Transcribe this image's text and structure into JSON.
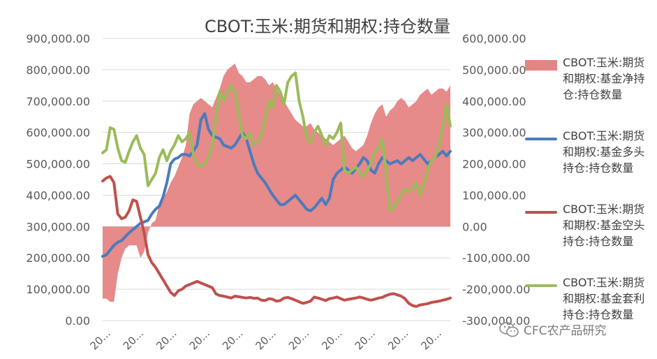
{
  "chart_data": {
    "type": "line",
    "title": "CBOT:玉米:期货和期权:持仓数量",
    "y_left": {
      "min": 0,
      "max": 900000,
      "tick_labels": [
        "0.00",
        "100,000.00",
        "200,000.00",
        "300,000.00",
        "400,000.00",
        "500,000.00",
        "600,000.00",
        "700,000.00",
        "800,000.00",
        "900,000.00"
      ]
    },
    "y_right": {
      "min": -300000,
      "max": 600000,
      "tick_labels": [
        "-300,000.00",
        "-200,000.00",
        "-100,000.00",
        "0.00",
        "100,000.00",
        "200,000.00",
        "300,000.00",
        "400,000.00",
        "500,000.00",
        "600,000.00"
      ]
    },
    "x_tick_labels": [
      "20...",
      "20...",
      "20...",
      "20...",
      "20...",
      "20...",
      "20...",
      "20...",
      "20...",
      "20...",
      "20..."
    ],
    "grid": "horizontal",
    "legend_position": "right",
    "series": [
      {
        "name": "CBOT:玉米:期货和期权:基金净持仓:持仓数量",
        "kind": "area",
        "axis": "right",
        "color": "#e58484",
        "values": [
          -230000,
          -230000,
          -240000,
          -240000,
          -150000,
          -100000,
          -70000,
          -60000,
          -60000,
          -60000,
          -100000,
          -80000,
          -20000,
          10000,
          20000,
          70000,
          90000,
          110000,
          140000,
          160000,
          190000,
          220000,
          260000,
          360000,
          390000,
          400000,
          410000,
          400000,
          390000,
          380000,
          410000,
          440000,
          480000,
          500000,
          510000,
          520000,
          490000,
          480000,
          460000,
          460000,
          470000,
          480000,
          480000,
          470000,
          450000,
          460000,
          440000,
          420000,
          400000,
          380000,
          360000,
          340000,
          330000,
          320000,
          320000,
          330000,
          310000,
          300000,
          290000,
          280000,
          270000,
          260000,
          270000,
          280000,
          290000,
          270000,
          250000,
          240000,
          250000,
          260000,
          290000,
          330000,
          360000,
          380000,
          390000,
          350000,
          370000,
          380000,
          400000,
          410000,
          400000,
          380000,
          390000,
          400000,
          420000,
          430000,
          440000,
          420000,
          430000,
          440000,
          440000,
          430000,
          450000
        ]
      },
      {
        "name": "CBOT:玉米:期货和期权:基金多头持仓:持仓数量",
        "kind": "line",
        "axis": "left",
        "color": "#4a7bbd",
        "values": [
          205000,
          210000,
          225000,
          240000,
          250000,
          255000,
          268000,
          280000,
          290000,
          300000,
          310000,
          315000,
          320000,
          340000,
          355000,
          365000,
          395000,
          440000,
          500000,
          515000,
          520000,
          530000,
          530000,
          525000,
          540000,
          560000,
          640000,
          660000,
          610000,
          590000,
          585000,
          580000,
          560000,
          555000,
          550000,
          560000,
          580000,
          600000,
          580000,
          540000,
          500000,
          470000,
          455000,
          440000,
          420000,
          400000,
          385000,
          370000,
          370000,
          380000,
          390000,
          400000,
          385000,
          370000,
          355000,
          350000,
          360000,
          375000,
          390000,
          370000,
          390000,
          450000,
          470000,
          480000,
          490000,
          480000,
          470000,
          485000,
          500000,
          520000,
          510000,
          480000,
          470000,
          500000,
          520000,
          510000,
          500000,
          505000,
          510000,
          500000,
          510000,
          520000,
          510000,
          520000,
          530000,
          515000,
          500000,
          510000,
          520000,
          530000,
          540000,
          525000,
          540000
        ]
      },
      {
        "name": "CBOT:玉米:期货和期权:基金空头持仓:持仓数量",
        "kind": "line",
        "axis": "left",
        "color": "#c0504d",
        "values": [
          445000,
          455000,
          460000,
          440000,
          340000,
          325000,
          330000,
          350000,
          385000,
          380000,
          330000,
          280000,
          210000,
          185000,
          170000,
          150000,
          130000,
          110000,
          90000,
          80000,
          95000,
          100000,
          110000,
          115000,
          120000,
          125000,
          120000,
          115000,
          110000,
          105000,
          85000,
          80000,
          78000,
          75000,
          72000,
          78000,
          76000,
          74000,
          72000,
          74000,
          71000,
          72000,
          65000,
          64000,
          70000,
          68000,
          62000,
          64000,
          72000,
          74000,
          70000,
          65000,
          60000,
          55000,
          58000,
          62000,
          75000,
          72000,
          68000,
          64000,
          70000,
          72000,
          75000,
          70000,
          65000,
          68000,
          70000,
          72000,
          75000,
          72000,
          68000,
          65000,
          68000,
          72000,
          74000,
          80000,
          84000,
          86000,
          82000,
          78000,
          70000,
          55000,
          48000,
          45000,
          50000,
          52000,
          54000,
          58000,
          60000,
          62000,
          65000,
          68000,
          72000
        ]
      },
      {
        "name": "CBOT:玉米:期货和期权:基金套利持仓:持仓数量",
        "kind": "line",
        "axis": "left",
        "color": "#9bbb59",
        "values": [
          535000,
          545000,
          615000,
          610000,
          550000,
          510000,
          505000,
          540000,
          570000,
          590000,
          550000,
          530000,
          430000,
          450000,
          470000,
          520000,
          545000,
          510000,
          540000,
          560000,
          590000,
          570000,
          580000,
          600000,
          530000,
          500000,
          490000,
          500000,
          520000,
          560000,
          650000,
          730000,
          700000,
          730000,
          750000,
          730000,
          660000,
          590000,
          580000,
          600000,
          560000,
          570000,
          590000,
          640000,
          700000,
          680000,
          750000,
          730000,
          690000,
          760000,
          780000,
          790000,
          700000,
          650000,
          580000,
          570000,
          600000,
          620000,
          590000,
          560000,
          590000,
          580000,
          600000,
          630000,
          480000,
          470000,
          480000,
          490000,
          470000,
          460000,
          480000,
          500000,
          540000,
          550000,
          580000,
          470000,
          350000,
          360000,
          380000,
          400000,
          420000,
          410000,
          420000,
          440000,
          400000,
          430000,
          480000,
          510000,
          520000,
          560000,
          620000,
          690000,
          620000
        ]
      }
    ]
  },
  "watermark": {
    "text": "CFC农产品研究",
    "icon": "wechat-icon"
  }
}
